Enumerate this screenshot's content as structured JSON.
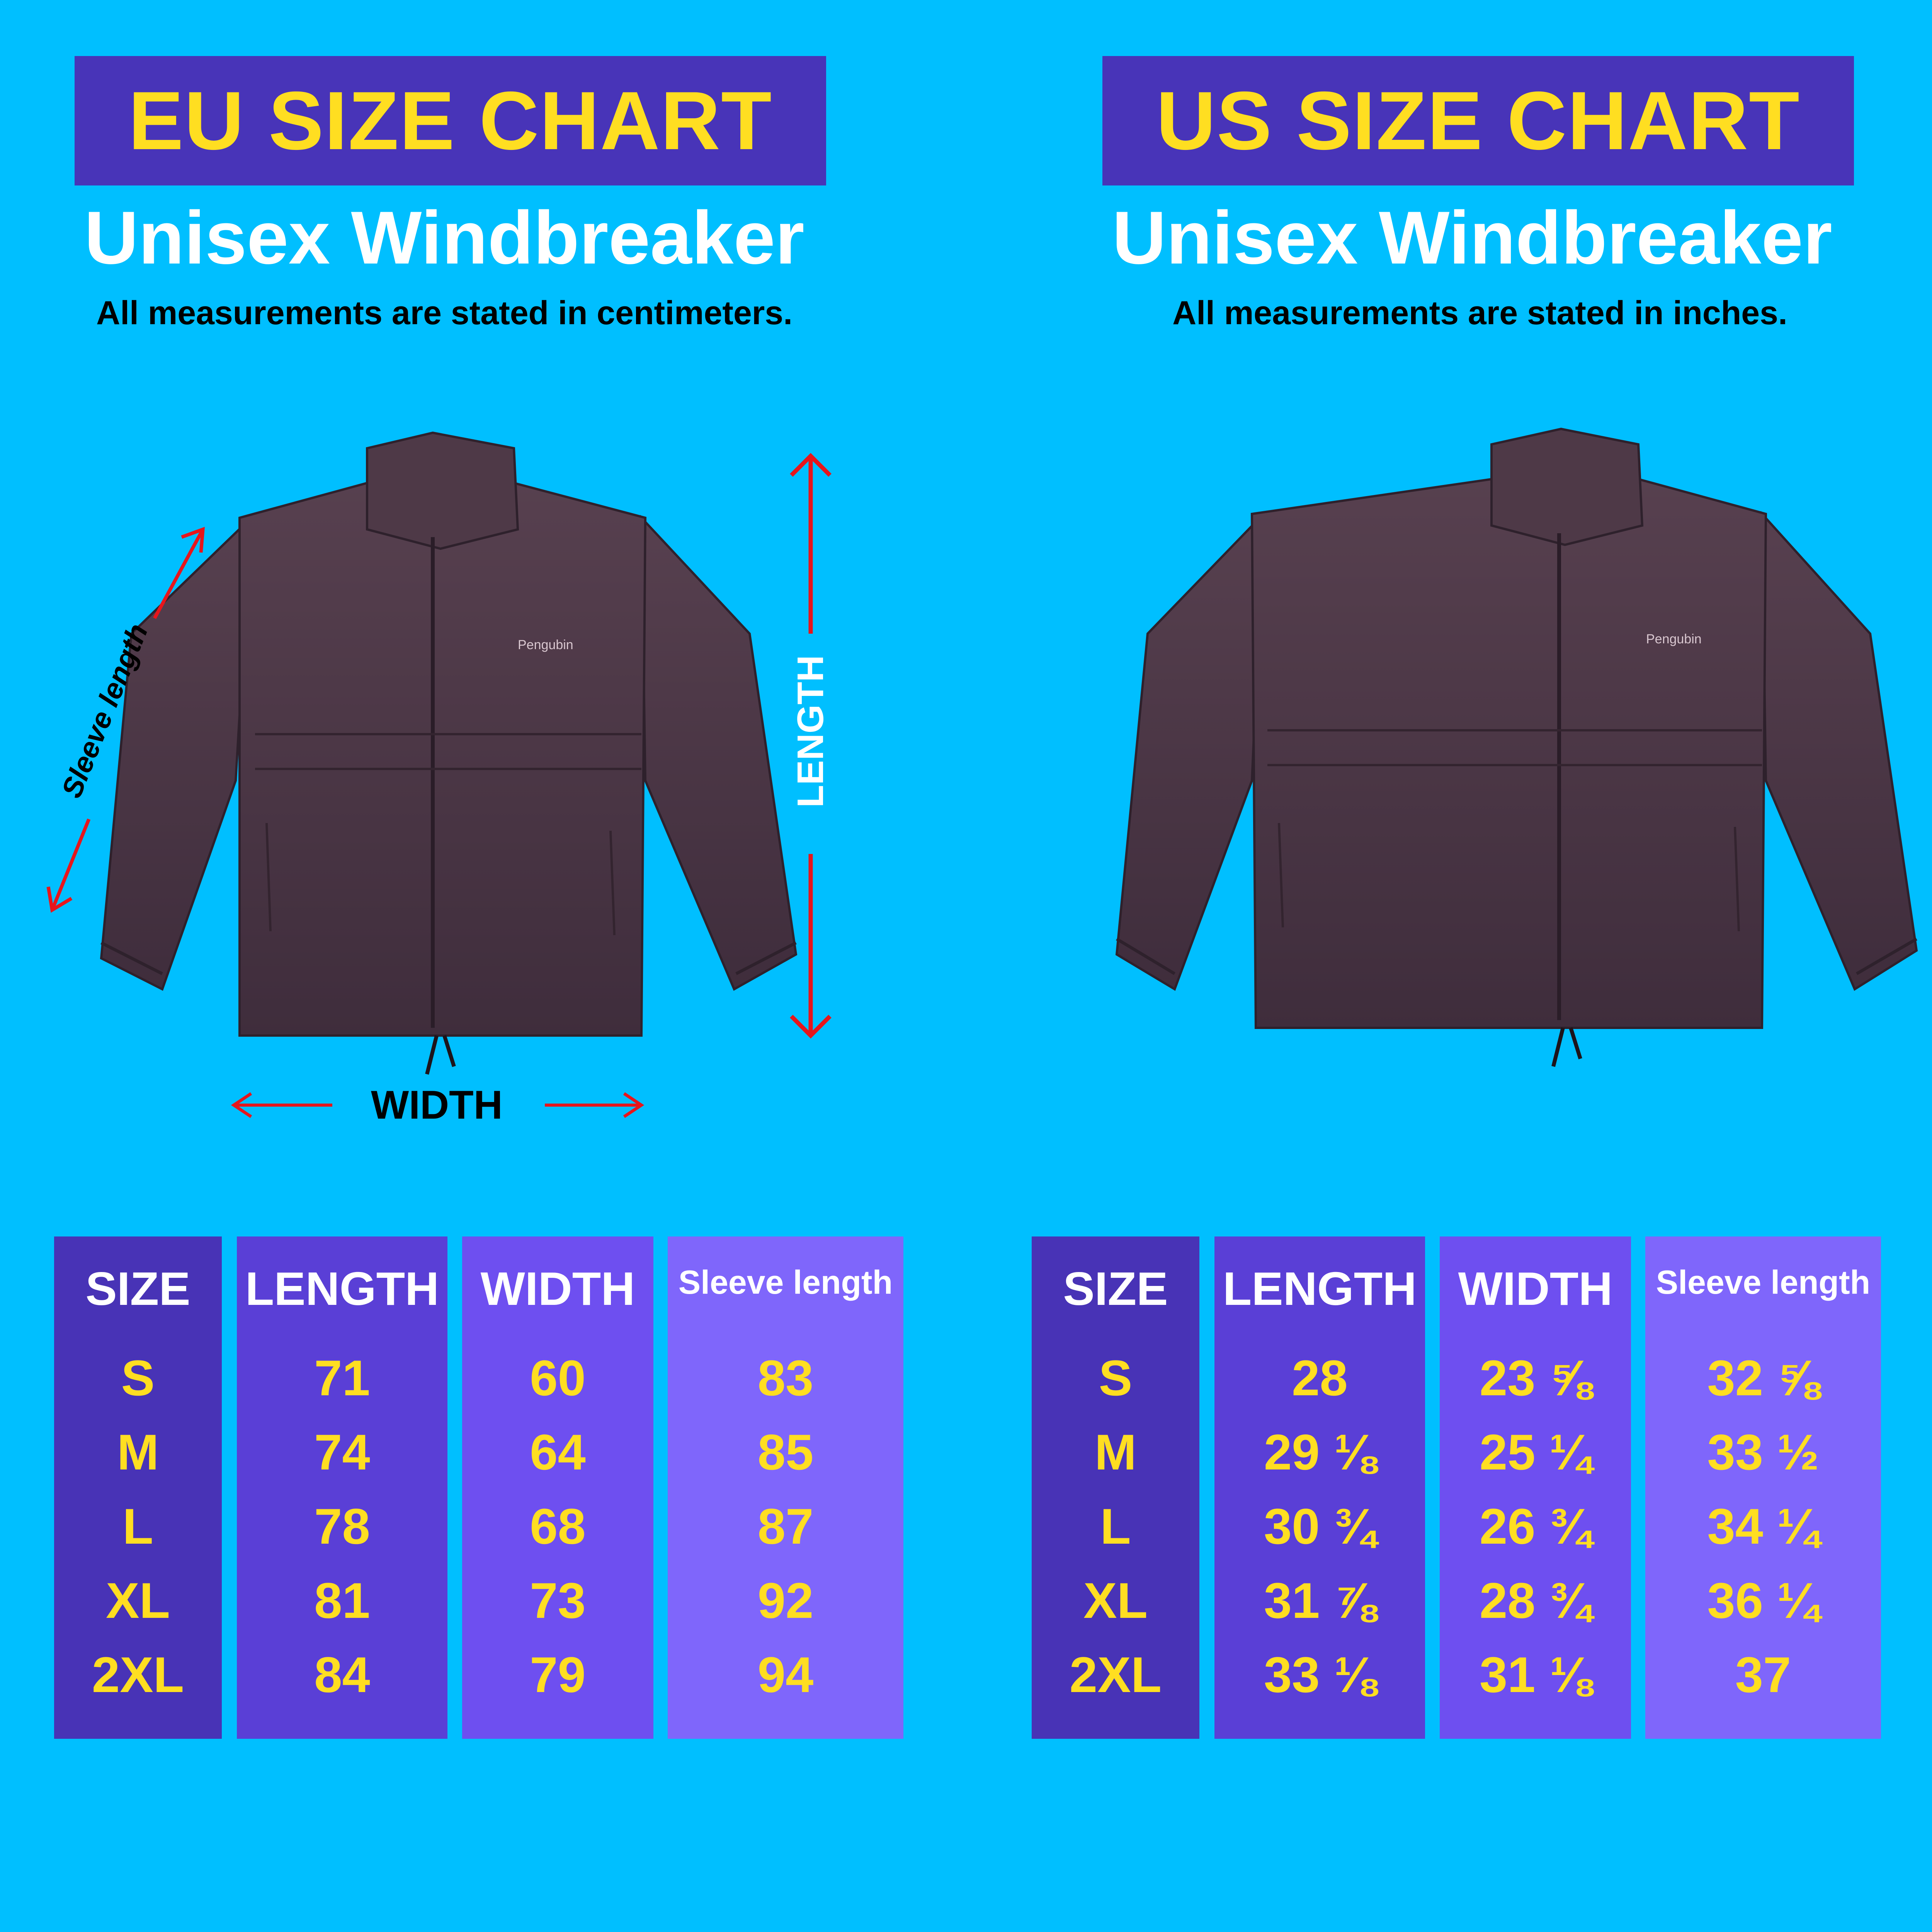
{
  "eu": {
    "title": "EU SIZE CHART",
    "product": "Unisex Windbreaker",
    "note": "All measurements are stated in centimeters.",
    "labels": {
      "sleeve": "Sleeve length",
      "length": "LENGTH",
      "width": "WIDTH",
      "logo": "Pengubin"
    },
    "table": {
      "headers": [
        "SIZE",
        "LENGTH",
        "WIDTH",
        "Sleeve length"
      ],
      "sizes": [
        "S",
        "M",
        "L",
        "XL",
        "2XL"
      ],
      "length": [
        "71",
        "74",
        "78",
        "81",
        "84"
      ],
      "width": [
        "60",
        "64",
        "68",
        "73",
        "79"
      ],
      "sleeve": [
        "83",
        "85",
        "87",
        "92",
        "94"
      ]
    }
  },
  "us": {
    "title": "US SIZE CHART",
    "product": "Unisex Windbreaker",
    "note": "All measurements are stated in inches.",
    "labels": {
      "logo": "Pengubin"
    },
    "table": {
      "headers": [
        "SIZE",
        "LENGTH",
        "WIDTH",
        "Sleeve length"
      ],
      "sizes": [
        "S",
        "M",
        "L",
        "XL",
        "2XL"
      ],
      "length": [
        "28",
        "29 ⅛",
        "30 ¾",
        "31 ⅞",
        "33 ⅛"
      ],
      "width": [
        "23 ⅝",
        "25 ¼",
        "26 ¾",
        "28 ¾",
        "31 ⅛"
      ],
      "sleeve": [
        "32 ⅝",
        "33 ½",
        "34 ¼",
        "36 ¼",
        "37"
      ]
    }
  },
  "colors": {
    "background": "#00bfff",
    "banner": "#4834b8",
    "accent_text": "#ffde21",
    "jacket": "#4a3646",
    "arrow": "#e8151b"
  }
}
